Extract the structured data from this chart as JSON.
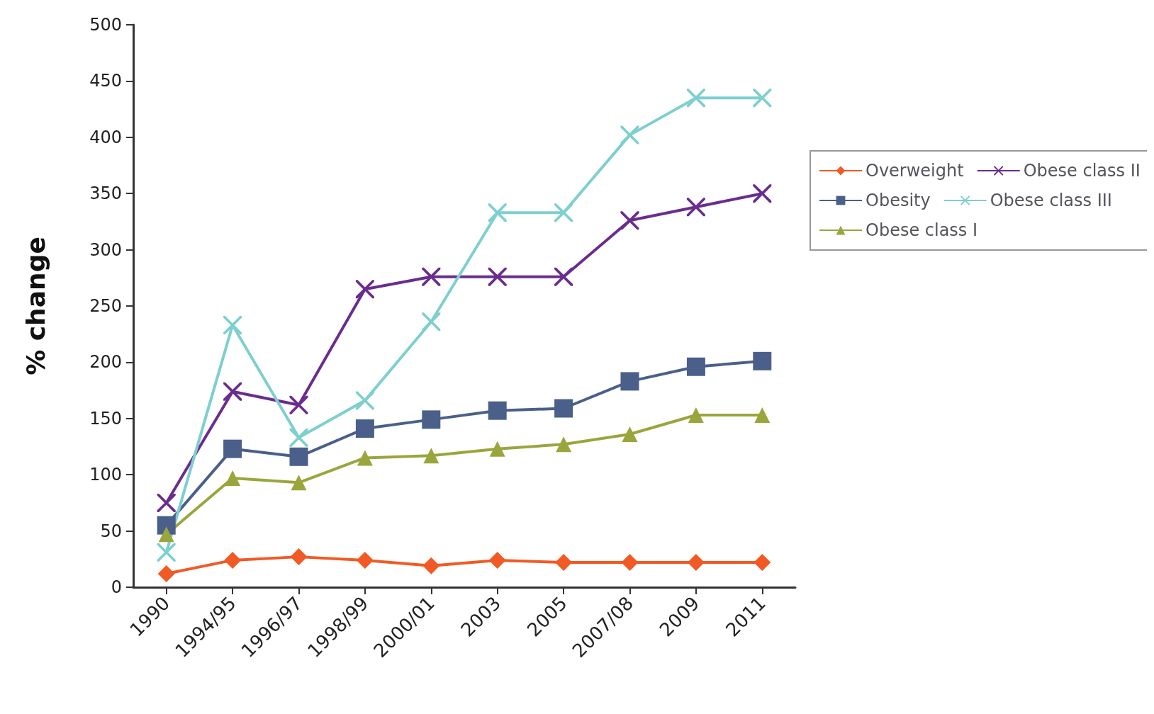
{
  "chart_data": {
    "type": "line",
    "ylabel": "% change",
    "categories": [
      "1990",
      "1994/95",
      "1996/97",
      "1998/99",
      "2000/01",
      "2003",
      "2005",
      "2007/08",
      "2009",
      "2011"
    ],
    "series": [
      {
        "name": "Overweight",
        "color": "#f15a24",
        "marker": "diamond",
        "values": [
          12,
          24,
          27,
          24,
          19,
          24,
          22,
          22,
          22,
          22
        ]
      },
      {
        "name": "Obesity",
        "color": "#4a5f8a",
        "marker": "square",
        "values": [
          55,
          123,
          116,
          141,
          149,
          157,
          159,
          183,
          196,
          201
        ]
      },
      {
        "name": "Obese class I",
        "color": "#9aa63c",
        "marker": "triangle",
        "values": [
          47,
          97,
          93,
          115,
          117,
          123,
          127,
          136,
          153,
          153
        ]
      },
      {
        "name": "Obese class II",
        "color": "#6a2c8e",
        "marker": "cross",
        "values": [
          75,
          174,
          162,
          265,
          276,
          276,
          276,
          326,
          338,
          350
        ]
      },
      {
        "name": "Obese class III",
        "color": "#7ecfcf",
        "marker": "cross",
        "values": [
          31,
          233,
          133,
          166,
          236,
          333,
          333,
          402,
          435,
          435
        ]
      }
    ],
    "ylim": [
      0,
      500
    ],
    "yticks": [
      0,
      50,
      100,
      150,
      200,
      250,
      300,
      350,
      400,
      450,
      500
    ],
    "grid": false,
    "legend": "right"
  }
}
